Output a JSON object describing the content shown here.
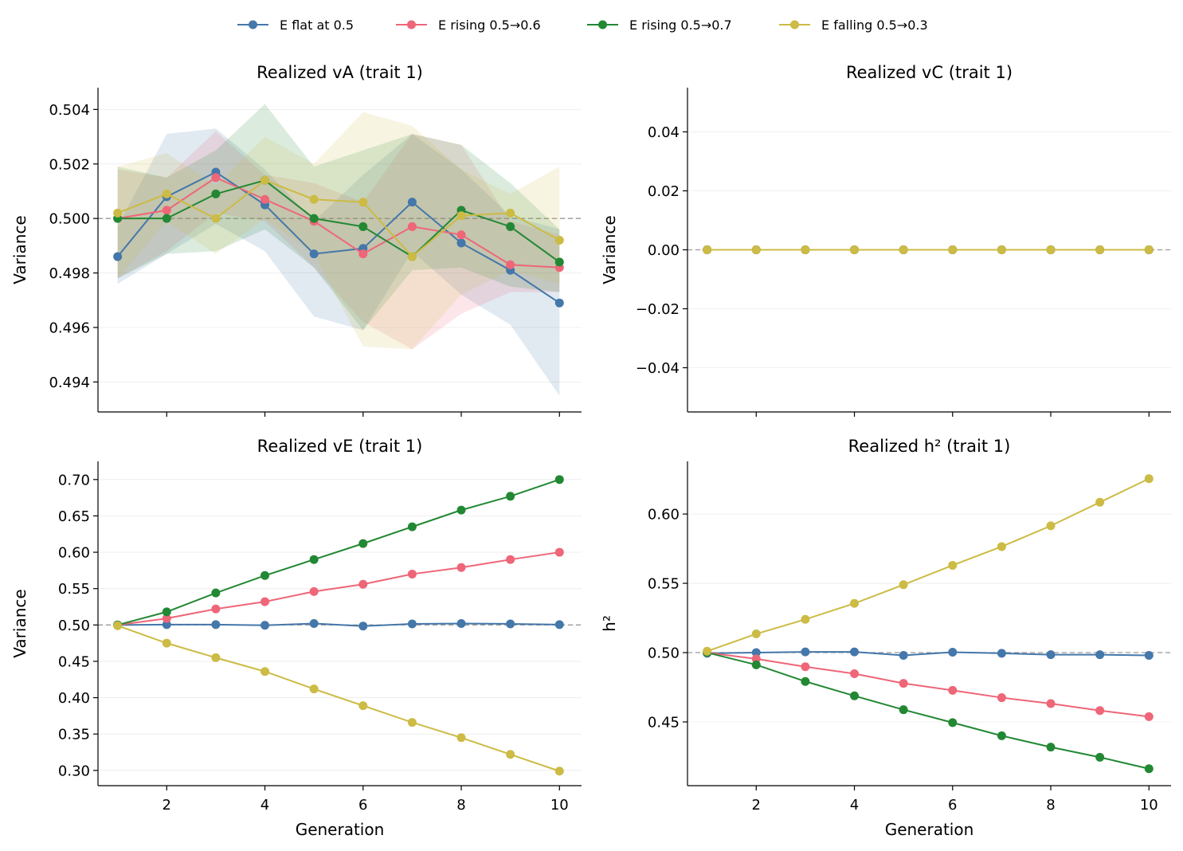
{
  "legend": [
    {
      "label": "E flat at 0.5",
      "color": "#4477aa"
    },
    {
      "label": "E rising 0.5→0.6",
      "color": "#ee6677"
    },
    {
      "label": "E rising 0.5→0.7",
      "color": "#228833"
    },
    {
      "label": "E falling 0.5→0.3",
      "color": "#ccbb44"
    }
  ],
  "chart_data": [
    {
      "type": "line",
      "title": "Realized vA (trait 1)",
      "xlabel": "",
      "ylabel": "Variance",
      "xlim": [
        0.6,
        10.45
      ],
      "ylim": [
        0.4929,
        0.5048
      ],
      "xticks": [
        2,
        4,
        6,
        8,
        10
      ],
      "show_xtick_labels": false,
      "yticks": [
        0.494,
        0.496,
        0.498,
        0.5,
        0.502,
        0.504
      ],
      "ytick_labels": [
        "0.494",
        "0.496",
        "0.498",
        "0.500",
        "0.502",
        "0.504"
      ],
      "reference_line": 0.5,
      "grid": "horizontal",
      "x": [
        1,
        2,
        3,
        4,
        5,
        6,
        7,
        8,
        9,
        10
      ],
      "series": [
        {
          "name": "E flat at 0.5",
          "color": "#4477aa",
          "values": [
            0.4986,
            0.5008,
            0.5017,
            0.5005,
            0.4987,
            0.4989,
            0.5006,
            0.4991,
            0.4981,
            0.4969
          ],
          "lower": [
            0.4976,
            0.4987,
            0.4998,
            0.4988,
            0.4964,
            0.4959,
            0.4988,
            0.4972,
            0.4961,
            0.4935
          ],
          "upper": [
            0.4997,
            0.5031,
            0.5033,
            0.5018,
            0.4999,
            0.5016,
            0.5031,
            0.5018,
            0.5001,
            0.4996
          ]
        },
        {
          "name": "E rising 0.5→0.6",
          "color": "#ee6677",
          "values": [
            0.5,
            0.5003,
            0.5015,
            0.5007,
            0.4999,
            0.4987,
            0.4997,
            0.4994,
            0.4983,
            0.4982
          ],
          "lower": [
            0.4978,
            0.4988,
            0.5002,
            0.4999,
            0.4982,
            0.4962,
            0.4952,
            0.4965,
            0.4973,
            0.4973
          ],
          "upper": [
            0.5018,
            0.5015,
            0.5032,
            0.5016,
            0.5013,
            0.5006,
            0.5031,
            0.5027,
            0.4999,
            0.4994
          ]
        },
        {
          "name": "E rising 0.5→0.7",
          "color": "#228833",
          "values": [
            0.5,
            0.5,
            0.5009,
            0.5014,
            0.5,
            0.4997,
            0.4986,
            0.5003,
            0.4997,
            0.4984
          ],
          "lower": [
            0.4978,
            0.4987,
            0.4988,
            0.4996,
            0.4982,
            0.4959,
            0.4981,
            0.4982,
            0.4975,
            0.4973
          ],
          "upper": [
            0.5019,
            0.5015,
            0.5025,
            0.5042,
            0.5019,
            0.5025,
            0.5031,
            0.5027,
            0.5013,
            0.4996
          ]
        },
        {
          "name": "E falling 0.5→0.3",
          "color": "#ccbb44",
          "values": [
            0.5002,
            0.5009,
            0.5,
            0.5014,
            0.5007,
            0.5006,
            0.4986,
            0.5001,
            0.5002,
            0.4992
          ],
          "lower": [
            0.4978,
            0.4999,
            0.4987,
            0.5,
            0.4987,
            0.4953,
            0.4952,
            0.4972,
            0.4981,
            0.4976
          ],
          "upper": [
            0.5019,
            0.5024,
            0.5012,
            0.503,
            0.502,
            0.5039,
            0.5034,
            0.5018,
            0.5009,
            0.5019
          ]
        }
      ]
    },
    {
      "type": "line",
      "title": "Realized vC (trait 1)",
      "xlabel": "",
      "ylabel": "Variance",
      "xlim": [
        0.6,
        10.45
      ],
      "ylim": [
        -0.055,
        0.055
      ],
      "xticks": [
        2,
        4,
        6,
        8,
        10
      ],
      "show_xtick_labels": false,
      "yticks": [
        -0.04,
        -0.02,
        0.0,
        0.02,
        0.04
      ],
      "ytick_labels": [
        "−0.04",
        "−0.02",
        "0.00",
        "0.02",
        "0.04"
      ],
      "reference_line": 0.0,
      "grid": "horizontal",
      "x": [
        1,
        2,
        3,
        4,
        5,
        6,
        7,
        8,
        9,
        10
      ],
      "series": [
        {
          "name": "E flat at 0.5",
          "color": "#4477aa",
          "values": [
            0,
            0,
            0,
            0,
            0,
            0,
            0,
            0,
            0,
            0
          ]
        },
        {
          "name": "E rising 0.5→0.6",
          "color": "#ee6677",
          "values": [
            0,
            0,
            0,
            0,
            0,
            0,
            0,
            0,
            0,
            0
          ]
        },
        {
          "name": "E rising 0.5→0.7",
          "color": "#228833",
          "values": [
            0,
            0,
            0,
            0,
            0,
            0,
            0,
            0,
            0,
            0
          ]
        },
        {
          "name": "E falling 0.5→0.3",
          "color": "#ccbb44",
          "values": [
            0,
            0,
            0,
            0,
            0,
            0,
            0,
            0,
            0,
            0
          ]
        }
      ]
    },
    {
      "type": "line",
      "title": "Realized vE (trait 1)",
      "xlabel": "Generation",
      "ylabel": "Variance",
      "xlim": [
        0.6,
        10.45
      ],
      "ylim": [
        0.279,
        0.725
      ],
      "xticks": [
        2,
        4,
        6,
        8,
        10
      ],
      "show_xtick_labels": true,
      "yticks": [
        0.3,
        0.35,
        0.4,
        0.45,
        0.5,
        0.55,
        0.6,
        0.65,
        0.7
      ],
      "ytick_labels": [
        "0.30",
        "0.35",
        "0.40",
        "0.45",
        "0.50",
        "0.55",
        "0.60",
        "0.65",
        "0.70"
      ],
      "reference_line": 0.5,
      "grid": "horizontal",
      "x": [
        1,
        2,
        3,
        4,
        5,
        6,
        7,
        8,
        9,
        10
      ],
      "series": [
        {
          "name": "E flat at 0.5",
          "color": "#4477aa",
          "values": [
            0.5,
            0.5005,
            0.5005,
            0.4995,
            0.502,
            0.4985,
            0.5015,
            0.502,
            0.5015,
            0.5005
          ]
        },
        {
          "name": "E rising 0.5→0.6",
          "color": "#ee6677",
          "values": [
            0.5,
            0.509,
            0.522,
            0.532,
            0.546,
            0.556,
            0.57,
            0.579,
            0.59,
            0.6
          ]
        },
        {
          "name": "E rising 0.5→0.7",
          "color": "#228833",
          "values": [
            0.5,
            0.518,
            0.544,
            0.568,
            0.59,
            0.612,
            0.635,
            0.658,
            0.677,
            0.7
          ]
        },
        {
          "name": "E falling 0.5→0.3",
          "color": "#ccbb44",
          "values": [
            0.499,
            0.475,
            0.455,
            0.436,
            0.412,
            0.389,
            0.366,
            0.345,
            0.322,
            0.299
          ]
        }
      ]
    },
    {
      "type": "line",
      "title": "Realized h² (trait 1)",
      "xlabel": "Generation",
      "ylabel": "h²",
      "xlim": [
        0.6,
        10.45
      ],
      "ylim": [
        0.404,
        0.638
      ],
      "xticks": [
        2,
        4,
        6,
        8,
        10
      ],
      "show_xtick_labels": true,
      "yticks": [
        0.45,
        0.5,
        0.55,
        0.6
      ],
      "ytick_labels": [
        "0.45",
        "0.50",
        "0.55",
        "0.60"
      ],
      "reference_line": 0.5,
      "grid": "horizontal",
      "x": [
        1,
        2,
        3,
        4,
        5,
        6,
        7,
        8,
        9,
        10
      ],
      "series": [
        {
          "name": "E flat at 0.5",
          "color": "#4477aa",
          "values": [
            0.4995,
            0.5,
            0.5005,
            0.5005,
            0.498,
            0.5003,
            0.4995,
            0.4985,
            0.4985,
            0.498
          ]
        },
        {
          "name": "E rising 0.5→0.6",
          "color": "#ee6677",
          "values": [
            0.5,
            0.4955,
            0.4898,
            0.4848,
            0.4778,
            0.4728,
            0.4675,
            0.4632,
            0.4582,
            0.4538
          ]
        },
        {
          "name": "E rising 0.5→0.7",
          "color": "#228833",
          "values": [
            0.5,
            0.4912,
            0.4792,
            0.4688,
            0.4588,
            0.4495,
            0.44,
            0.4318,
            0.4245,
            0.4162
          ]
        },
        {
          "name": "E falling 0.5→0.3",
          "color": "#ccbb44",
          "values": [
            0.501,
            0.5135,
            0.524,
            0.5355,
            0.549,
            0.563,
            0.5765,
            0.5915,
            0.6085,
            0.6255
          ]
        }
      ]
    }
  ]
}
